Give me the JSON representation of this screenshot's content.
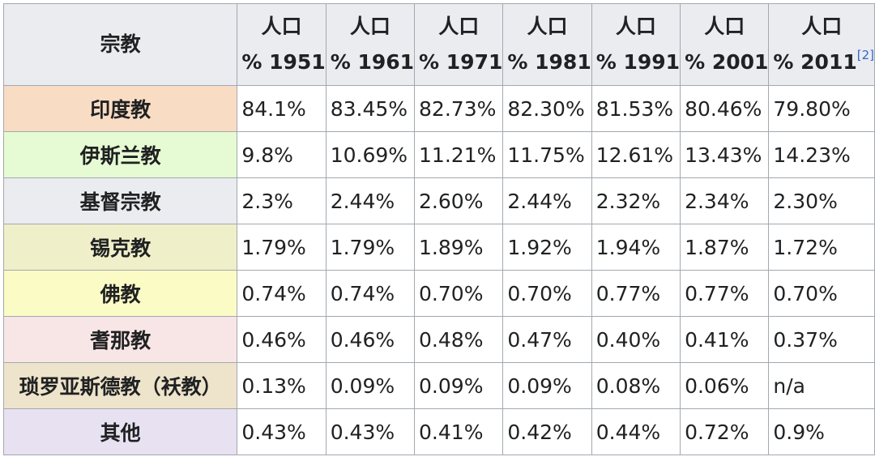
{
  "header": {
    "religion": "宗教",
    "years": [
      {
        "line1": "人口",
        "line2": "% 1951"
      },
      {
        "line1": "人口",
        "line2": "% 1961"
      },
      {
        "line1": "人口",
        "line2": "% 1971"
      },
      {
        "line1": "人口",
        "line2": "% 1981"
      },
      {
        "line1": "人口",
        "line2": "% 1991"
      },
      {
        "line1": "人口",
        "line2": "% 2001"
      },
      {
        "line1": "人口",
        "line2": "% 2011",
        "ref": "[2]"
      }
    ]
  },
  "rows": [
    {
      "name": "印度教",
      "color": "#f9dcc4",
      "values": [
        "84.1%",
        "83.45%",
        "82.73%",
        "82.30%",
        "81.53%",
        "80.46%",
        "79.80%"
      ]
    },
    {
      "name": "伊斯兰教",
      "color": "#e6fbd3",
      "values": [
        "9.8%",
        "10.69%",
        "11.21%",
        "11.75%",
        "12.61%",
        "13.43%",
        "14.23%"
      ]
    },
    {
      "name": "基督宗教",
      "color": "#eaecf0",
      "values": [
        "2.3%",
        "2.44%",
        "2.60%",
        "2.44%",
        "2.32%",
        "2.34%",
        "2.30%"
      ]
    },
    {
      "name": "锡克教",
      "color": "#efefc9",
      "values": [
        "1.79%",
        "1.79%",
        "1.89%",
        "1.92%",
        "1.94%",
        "1.87%",
        "1.72%"
      ]
    },
    {
      "name": "佛教",
      "color": "#fbfbc5",
      "values": [
        "0.74%",
        "0.74%",
        "0.70%",
        "0.70%",
        "0.77%",
        "0.77%",
        "0.70%"
      ]
    },
    {
      "name": "耆那教",
      "color": "#f8e6e6",
      "values": [
        "0.46%",
        "0.46%",
        "0.48%",
        "0.47%",
        "0.40%",
        "0.41%",
        "0.37%"
      ]
    },
    {
      "name": "琐罗亚斯德教（袄教）",
      "color": "#eee4cb",
      "values": [
        "0.13%",
        "0.09%",
        "0.09%",
        "0.09%",
        "0.08%",
        "0.06%",
        "n/a"
      ]
    },
    {
      "name": "其他",
      "color": "#e8e1f1",
      "values": [
        "0.43%",
        "0.43%",
        "0.41%",
        "0.42%",
        "0.44%",
        "0.72%",
        "0.9%"
      ]
    }
  ]
}
